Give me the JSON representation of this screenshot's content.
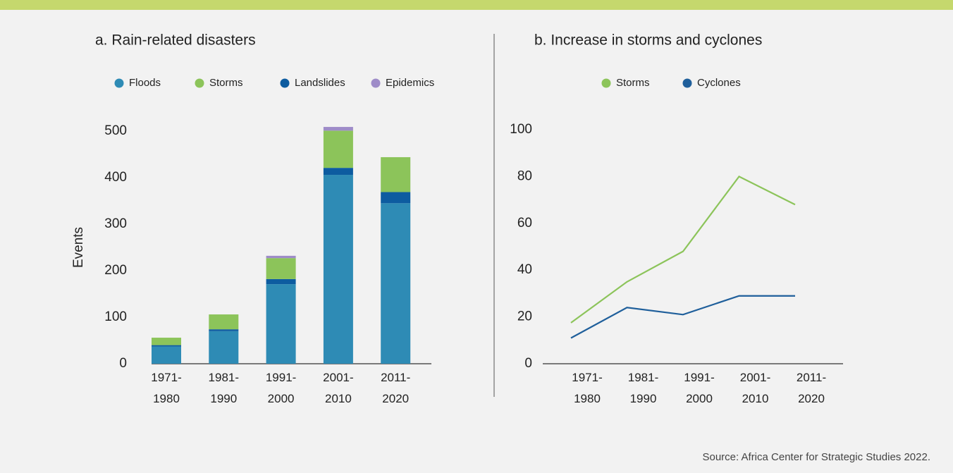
{
  "source": "Source: Africa Center for Strategic Studies 2022.",
  "chart_data": [
    {
      "type": "stacked-bar",
      "title": "a. Rain-related disasters",
      "y_label": "Events",
      "categories": [
        "1971-1980",
        "1981-1990",
        "1991-2000",
        "2001-2010",
        "2011-2020"
      ],
      "series": [
        {
          "name": "Floods",
          "color": "#2e8bb5",
          "values": [
            37,
            70,
            171,
            406,
            345
          ]
        },
        {
          "name": "Storms",
          "color": "#8cc45a",
          "values": [
            16,
            32,
            45,
            80,
            75
          ]
        },
        {
          "name": "Landslides",
          "color": "#0d5ca0",
          "values": [
            3,
            4,
            11,
            15,
            24
          ]
        },
        {
          "name": "Epidemics",
          "color": "#9e8cc8",
          "values": [
            0,
            0,
            5,
            8,
            0
          ]
        }
      ],
      "stack_order": [
        0,
        2,
        1,
        3
      ],
      "ylim": [
        0,
        500
      ],
      "yticks": [
        0,
        100,
        200,
        300,
        400,
        500
      ]
    },
    {
      "type": "line",
      "title": "b. Increase in storms and cyclones",
      "categories": [
        "1971-1980",
        "1981-1990",
        "1991-2000",
        "2001-2010",
        "2011-2020"
      ],
      "series": [
        {
          "name": "Storms",
          "color": "#8cc45a",
          "values": [
            17.5,
            35,
            48,
            80,
            68
          ]
        },
        {
          "name": "Cyclones",
          "color": "#1f5f9b",
          "values": [
            11,
            24,
            21,
            29,
            29
          ]
        }
      ],
      "ylim": [
        0,
        100
      ],
      "yticks": [
        0,
        20,
        40,
        60,
        80,
        100
      ]
    }
  ]
}
